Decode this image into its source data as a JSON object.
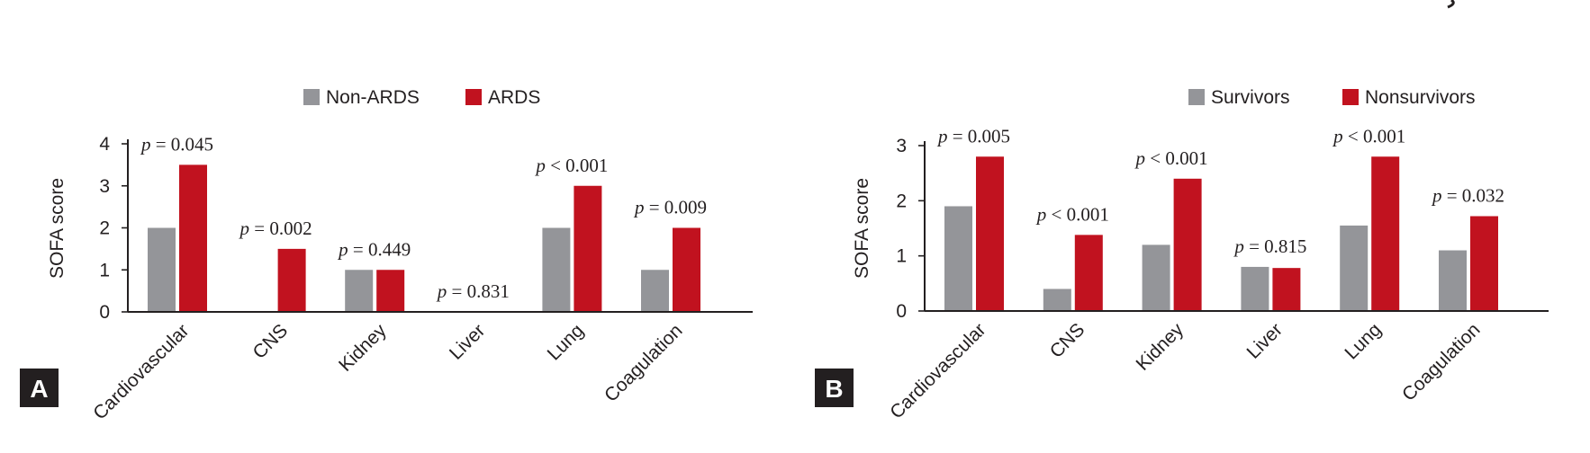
{
  "colors": {
    "grey": "#949599",
    "red": "#c1121f",
    "axis": "#231f20",
    "panel_label_bg": "#231f20"
  },
  "chart_data": [
    {
      "type": "bar",
      "panel_label": "A",
      "legend": [
        "Non-ARDS",
        "ARDS"
      ],
      "legend_position": "top-center",
      "ylabel": "SOFA score",
      "xlabel": "",
      "ylim": [
        0,
        4
      ],
      "yticks": [
        "0",
        "1",
        "2",
        "3",
        "4"
      ],
      "grid": false,
      "categories": [
        "Cardiovascular",
        "CNS",
        "Kidney",
        "Liver",
        "Lung",
        "Coagulation"
      ],
      "series": [
        {
          "name": "Non-ARDS",
          "color": "#949599",
          "values": [
            2,
            0,
            1,
            0,
            2,
            1
          ]
        },
        {
          "name": "ARDS",
          "color": "#c1121f",
          "values": [
            3.5,
            1.5,
            1,
            0,
            3,
            2
          ]
        }
      ],
      "annotations": [
        {
          "p": "p",
          "text": " = 0.045"
        },
        {
          "p": "p",
          "text": " = 0.002"
        },
        {
          "p": "p",
          "text": " = 0.449"
        },
        {
          "p": "p",
          "text": " = 0.831"
        },
        {
          "p": "p",
          "text": " < 0.001"
        },
        {
          "p": "p",
          "text": " = 0.009"
        }
      ]
    },
    {
      "type": "bar",
      "panel_label": "B",
      "legend": [
        "Survivors",
        "Nonsurvivors"
      ],
      "legend_position": "top-center",
      "ylabel": "SOFA score",
      "xlabel": "",
      "ylim": [
        0,
        3
      ],
      "yticks": [
        "0",
        "1",
        "2",
        "3"
      ],
      "grid": false,
      "categories": [
        "Cardiovascular",
        "CNS",
        "Kidney",
        "Liver",
        "Lung",
        "Coagulation"
      ],
      "series": [
        {
          "name": "Survivors",
          "color": "#949599",
          "values": [
            1.9,
            0.4,
            1.2,
            0.8,
            1.55,
            1.1
          ]
        },
        {
          "name": "Nonsurvivors",
          "color": "#c1121f",
          "values": [
            2.8,
            1.38,
            2.4,
            0.78,
            2.8,
            1.72
          ]
        }
      ],
      "annotations": [
        {
          "p": "p",
          "text": " = 0.005"
        },
        {
          "p": "p",
          "text": " < 0.001"
        },
        {
          "p": "p",
          "text": "  < 0.001"
        },
        {
          "p": "p",
          "text": " = 0.815"
        },
        {
          "p": "p",
          "text": " < 0.001"
        },
        {
          "p": "p",
          "text": " = 0.032"
        }
      ]
    }
  ]
}
